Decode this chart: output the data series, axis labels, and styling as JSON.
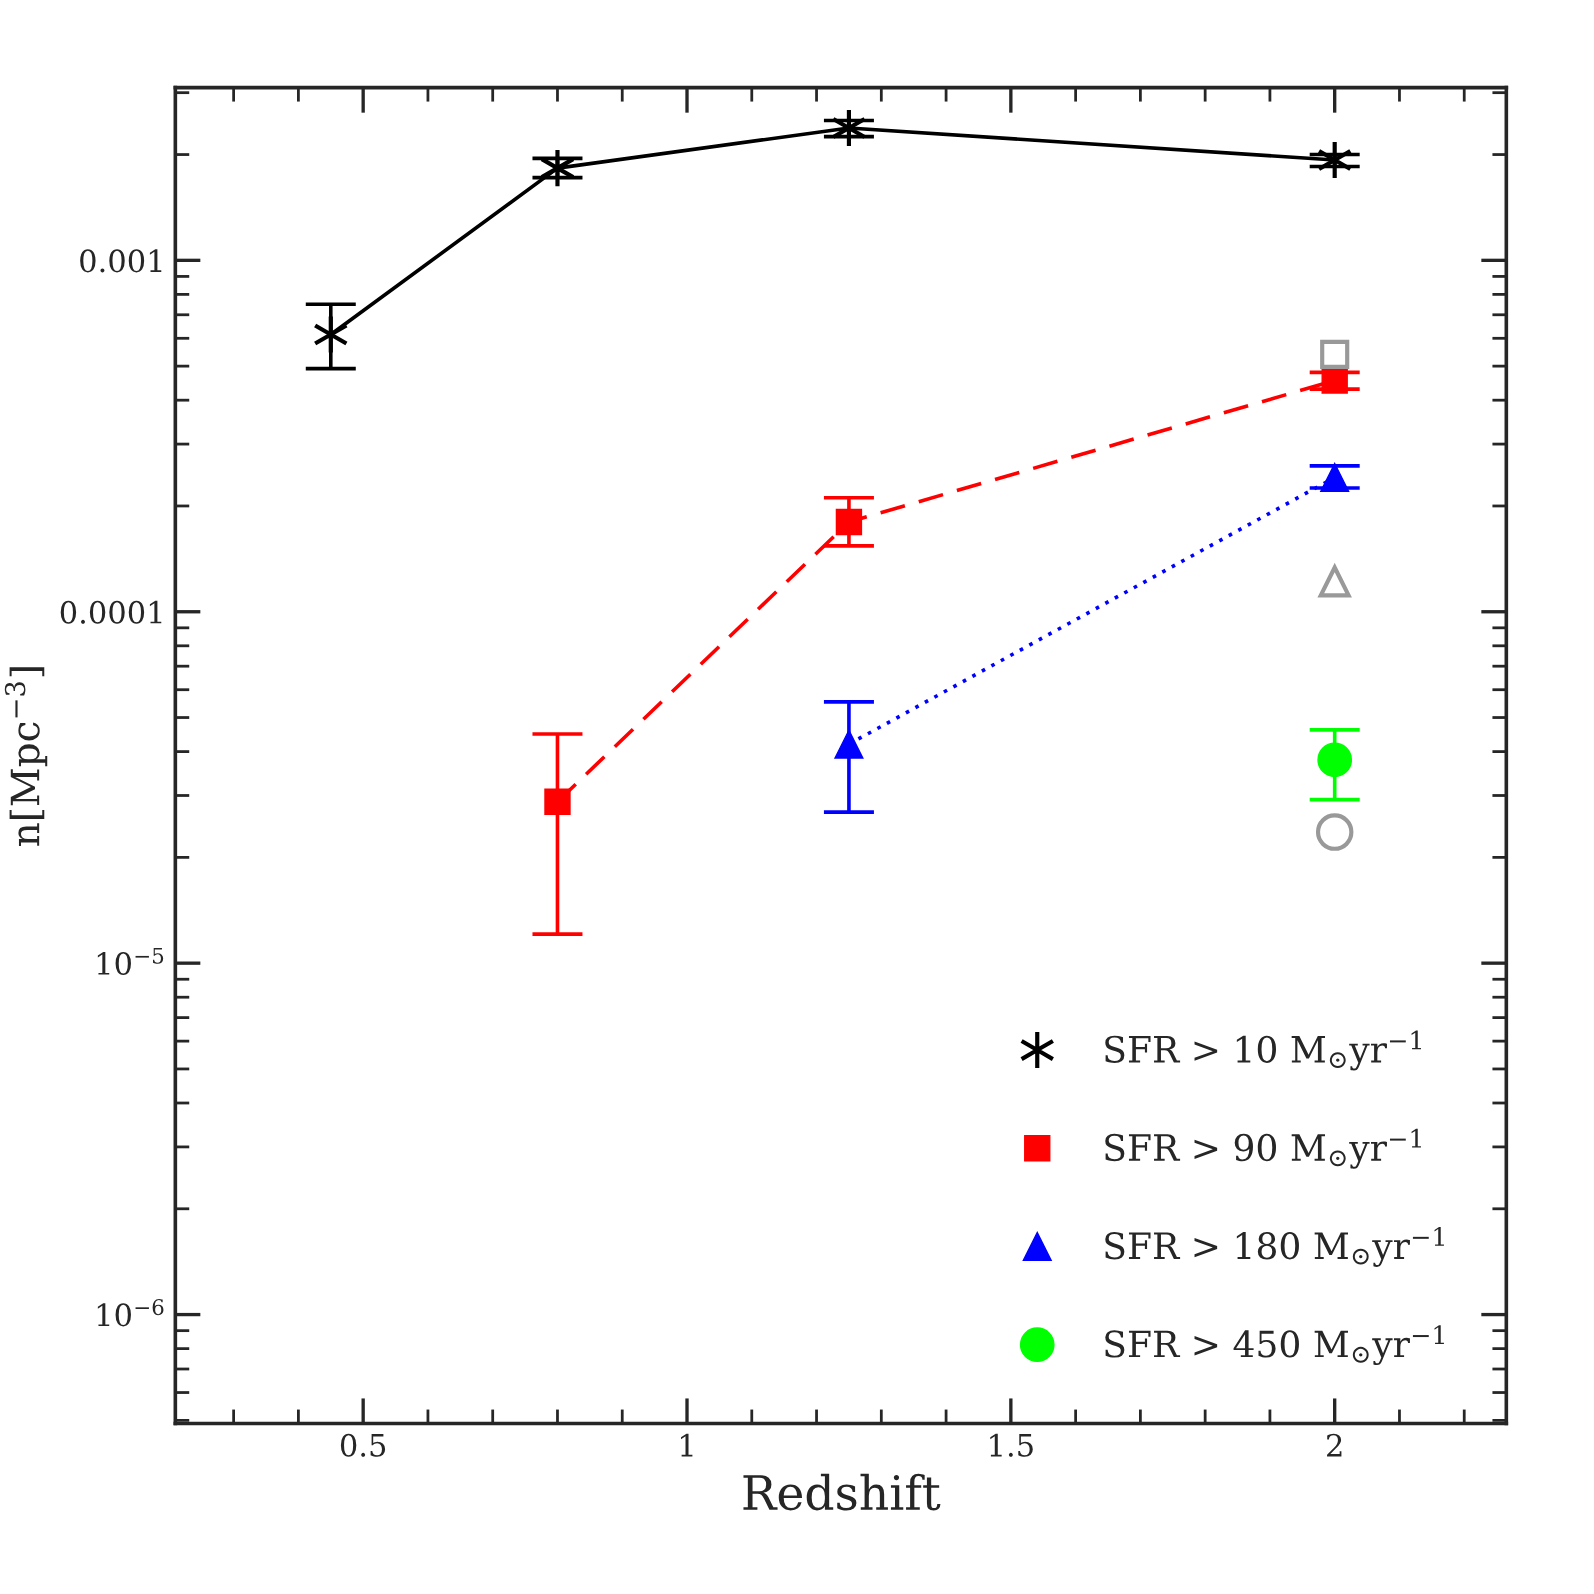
{
  "chart_data": {
    "type": "line",
    "xlabel": "Redshift",
    "ylabel": "n[Mpc$^{−3}$]",
    "log": "y",
    "xlim": [
      0.21,
      2.265
    ],
    "ylim": [
      4.9e-07,
      0.0031
    ],
    "xticks": [
      0.5,
      1,
      1.5,
      2
    ],
    "yticks": [
      {
        "value": 0.001,
        "label": "0.001"
      },
      {
        "value": 0.0001,
        "label": "0.0001"
      },
      {
        "value": 1e-05,
        "label": "10$^{−5}$"
      },
      {
        "value": 1e-06,
        "label": "10$^{−6}$"
      }
    ],
    "grid": false,
    "legend": "bottom right",
    "series": [
      {
        "name": "SFR > 10 M$_{⊙}$yr$^{−1}$",
        "color": "#000000",
        "marker": "cross",
        "line_style": "solid",
        "x": [
          0.45,
          0.8,
          1.25,
          2.0
        ],
        "values": [
          0.000615,
          0.00183,
          0.00238,
          0.00193
        ],
        "errors": [
          [
            0.000492,
            0.00075
          ],
          [
            0.00172,
            0.00195
          ],
          [
            0.00225,
            0.0025
          ],
          [
            0.00185,
            0.002
          ]
        ]
      },
      {
        "name": "SFR > 90 M$_{⊙}$yr$^{−1}$",
        "color": "#ff0000",
        "marker": "square",
        "line_style": "dashed",
        "x": [
          0.8,
          1.25,
          2.0
        ],
        "values": [
          2.88e-05,
          0.00018,
          0.000455
        ],
        "errors": [
          [
            1.21e-05,
            4.49e-05
          ],
          [
            0.000154,
            0.000211
          ],
          [
            0.00043,
            0.00048
          ]
        ]
      },
      {
        "name": "SFR > 180 M$_{⊙}$yr$^{−1}$",
        "color": "#0000ff",
        "marker": "triangle",
        "line_style": "dotted",
        "x": [
          1.25,
          2.0
        ],
        "values": [
          4.2e-05,
          0.000241
        ],
        "errors": [
          [
            2.69e-05,
            5.54e-05
          ],
          [
            0.000225,
            0.00026
          ]
        ]
      },
      {
        "name": "SFR > 450 M$_{⊙}$yr$^{−1}$",
        "color": "#00ff00",
        "type": "scatter",
        "marker": "circle",
        "x": [
          2.0
        ],
        "values": [
          3.79e-05
        ],
        "errors": [
          [
            2.92e-05,
            4.61e-05
          ]
        ]
      },
      {
        "color": "#999999",
        "type": "scatter",
        "marker": "square",
        "x": [
          2.0
        ],
        "values": [
          0.00054
        ]
      },
      {
        "color": "#999999",
        "type": "scatter",
        "marker": "triangle",
        "x": [
          2.0
        ],
        "values": [
          0.000122
        ]
      },
      {
        "color": "#999999",
        "type": "scatter",
        "marker": "circle",
        "x": [
          2.0
        ],
        "values": [
          2.36e-05
        ]
      }
    ]
  }
}
